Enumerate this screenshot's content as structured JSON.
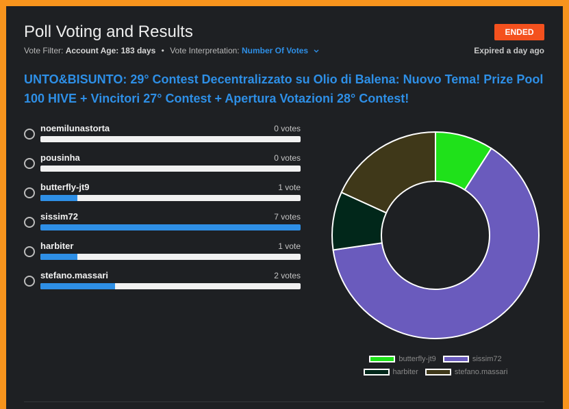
{
  "header": {
    "title": "Poll Voting and Results",
    "status": "ENDED",
    "vote_filter_label": "Vote Filter:",
    "account_age_label": "Account Age:",
    "account_age_value": "183 days",
    "separator": "•",
    "vote_interpretation_label": "Vote Interpretation:",
    "vote_interpretation_value": "Number Of Votes",
    "chevron_icon": "chevron-down-icon",
    "expired": "Expired a day ago"
  },
  "question": "UNTO&BISUNTO: 29° Contest Decentralizzato su Olio di Balena: Nuovo Tema! Prize Pool 100 HIVE + Vincitori 27° Contest + Apertura Votazioni 28° Contest!",
  "options": [
    {
      "name": "noemilunastorta",
      "votes_label": "0 votes",
      "votes": 0
    },
    {
      "name": "pousinha",
      "votes_label": "0 votes",
      "votes": 0
    },
    {
      "name": "butterfly-jt9",
      "votes_label": "1 vote",
      "votes": 1
    },
    {
      "name": "sissim72",
      "votes_label": "7 votes",
      "votes": 7
    },
    {
      "name": "harbiter",
      "votes_label": "1 vote",
      "votes": 1
    },
    {
      "name": "stefano.massari",
      "votes_label": "2 votes",
      "votes": 2
    }
  ],
  "chart_data": {
    "type": "pie",
    "categories": [
      "butterfly-jt9",
      "sissim72",
      "harbiter",
      "stefano.massari"
    ],
    "values": [
      1,
      7,
      1,
      2
    ],
    "colors": [
      "#1fe11a",
      "#6a5bbd",
      "#01271a",
      "#3f3819"
    ],
    "legend_placement": "bottom"
  }
}
